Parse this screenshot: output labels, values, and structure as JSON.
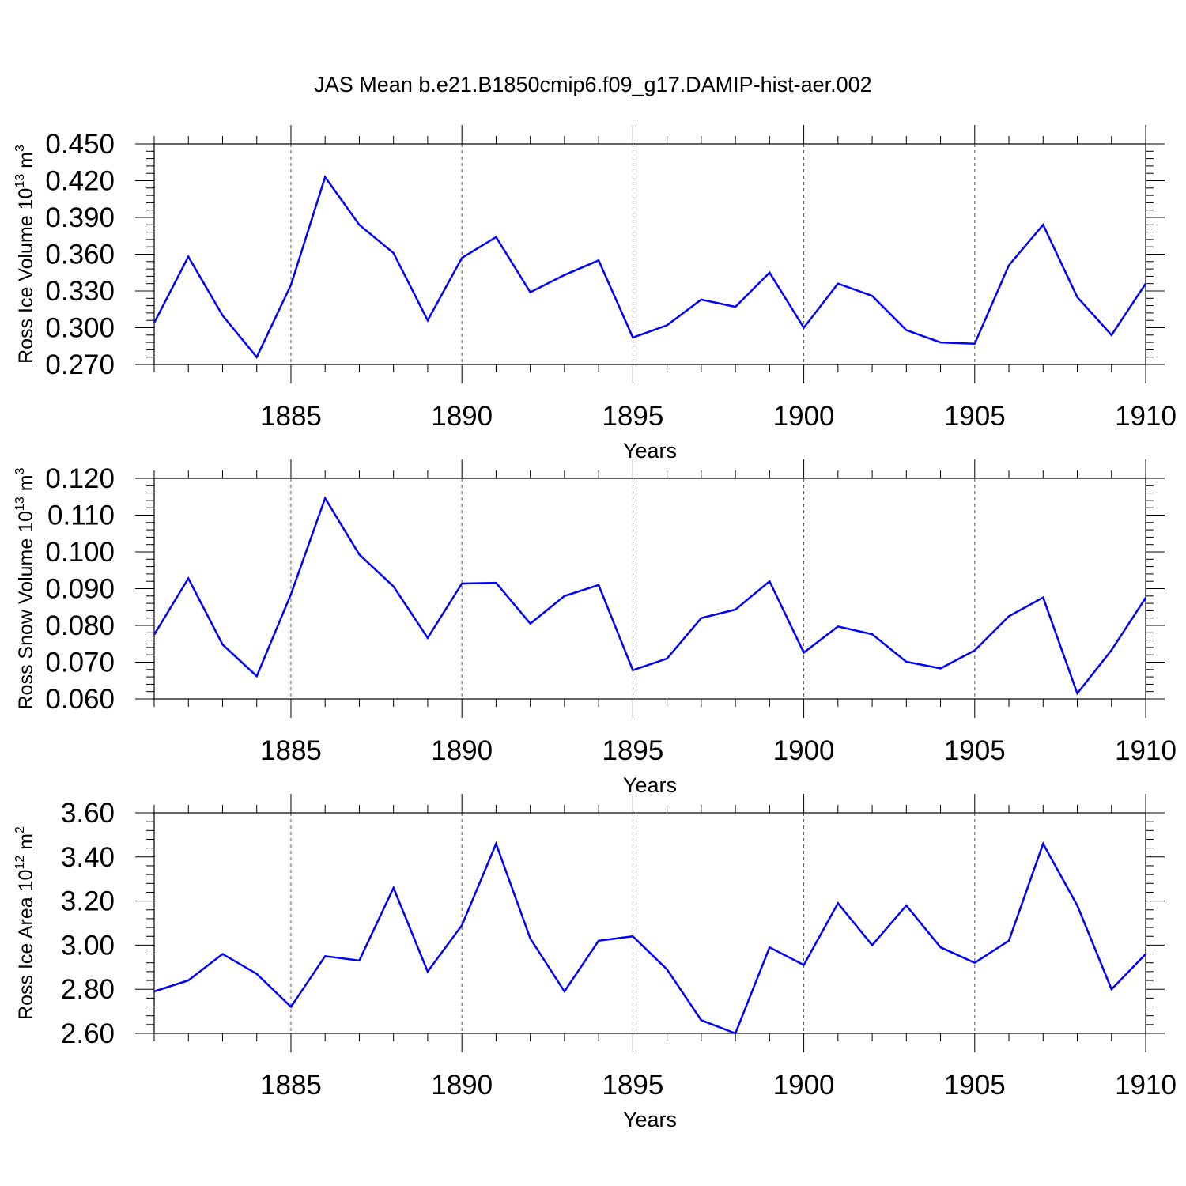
{
  "title": "JAS Mean b.e21.B1850cmip6.f09_g17.DAMIP-hist-aer.002",
  "colors": {
    "line": "#0000ff",
    "axis": "#000000",
    "grid": "#555555"
  },
  "chart_data": [
    {
      "type": "line",
      "xlabel": "Years",
      "ylabel": {
        "text": "Ross Ice Volume 10",
        "exp": "13",
        "unit": " m",
        "unit_exp": "3"
      },
      "xlim": [
        1881,
        1910
      ],
      "ylim": [
        0.27,
        0.45
      ],
      "xticks": [
        1885,
        1890,
        1895,
        1900,
        1905,
        1910
      ],
      "yticks": [
        "0.270",
        "0.300",
        "0.330",
        "0.360",
        "0.390",
        "0.420",
        "0.450"
      ],
      "x": [
        1881,
        1882,
        1883,
        1884,
        1885,
        1886,
        1887,
        1888,
        1889,
        1890,
        1891,
        1892,
        1893,
        1894,
        1895,
        1896,
        1897,
        1898,
        1899,
        1900,
        1901,
        1902,
        1903,
        1904,
        1905,
        1906,
        1907,
        1908,
        1909,
        1910
      ],
      "series": [
        {
          "values": [
            0.304,
            0.358,
            0.31,
            0.276,
            0.335,
            0.423,
            0.384,
            0.361,
            0.306,
            0.357,
            0.374,
            0.329,
            0.343,
            0.355,
            0.292,
            0.302,
            0.323,
            0.317,
            0.345,
            0.3,
            0.336,
            0.326,
            0.298,
            0.288,
            0.287,
            0.351,
            0.384,
            0.325,
            0.294,
            0.336
          ]
        }
      ],
      "grid": "vertical dashed at major x ticks"
    },
    {
      "type": "line",
      "xlabel": "Years",
      "ylabel": {
        "text": "Ross Snow Volume 10",
        "exp": "13",
        "unit": " m",
        "unit_exp": "3"
      },
      "xlim": [
        1881,
        1910
      ],
      "ylim": [
        0.06,
        0.12
      ],
      "xticks": [
        1885,
        1890,
        1895,
        1900,
        1905,
        1910
      ],
      "yticks": [
        "0.060",
        "0.070",
        "0.080",
        "0.090",
        "0.100",
        "0.110",
        "0.120"
      ],
      "x": [
        1881,
        1882,
        1883,
        1884,
        1885,
        1886,
        1887,
        1888,
        1889,
        1890,
        1891,
        1892,
        1893,
        1894,
        1895,
        1896,
        1897,
        1898,
        1899,
        1900,
        1901,
        1902,
        1903,
        1904,
        1905,
        1906,
        1907,
        1908,
        1909,
        1910
      ],
      "series": [
        {
          "values": [
            0.0775,
            0.0928,
            0.0748,
            0.0662,
            0.0885,
            0.1146,
            0.0993,
            0.0906,
            0.0766,
            0.0914,
            0.0916,
            0.0805,
            0.088,
            0.091,
            0.0678,
            0.071,
            0.082,
            0.0843,
            0.092,
            0.0726,
            0.0797,
            0.0776,
            0.0701,
            0.0683,
            0.0732,
            0.0825,
            0.0876,
            0.0615,
            0.0733,
            0.0875
          ]
        }
      ],
      "grid": "vertical dashed at major x ticks"
    },
    {
      "type": "line",
      "xlabel": "Years",
      "ylabel": {
        "text": "Ross Ice Area 10",
        "exp": "12",
        "unit": " m",
        "unit_exp": "2"
      },
      "xlim": [
        1881,
        1910
      ],
      "ylim": [
        2.6,
        3.6
      ],
      "xticks": [
        1885,
        1890,
        1895,
        1900,
        1905,
        1910
      ],
      "yticks": [
        "2.60",
        "2.80",
        "3.00",
        "3.20",
        "3.40",
        "3.60"
      ],
      "x": [
        1881,
        1882,
        1883,
        1884,
        1885,
        1886,
        1887,
        1888,
        1889,
        1890,
        1891,
        1892,
        1893,
        1894,
        1895,
        1896,
        1897,
        1898,
        1899,
        1900,
        1901,
        1902,
        1903,
        1904,
        1905,
        1906,
        1907,
        1908,
        1909,
        1910
      ],
      "series": [
        {
          "values": [
            2.79,
            2.84,
            2.96,
            2.87,
            2.72,
            2.95,
            2.93,
            3.26,
            2.88,
            3.09,
            3.46,
            3.03,
            2.79,
            3.02,
            3.04,
            2.89,
            2.66,
            2.6,
            2.99,
            2.91,
            3.19,
            3.0,
            3.18,
            2.99,
            2.92,
            3.02,
            3.46,
            3.18,
            2.8,
            2.96
          ]
        }
      ],
      "grid": "vertical dashed at major x ticks"
    }
  ]
}
